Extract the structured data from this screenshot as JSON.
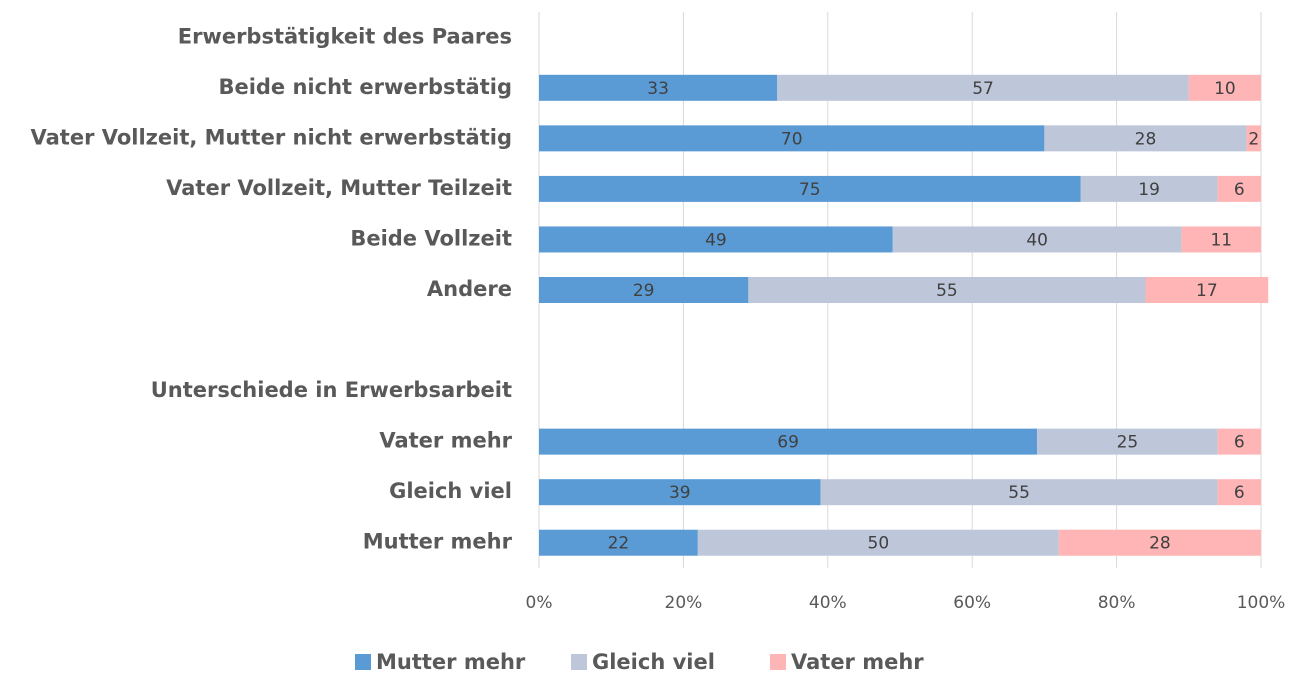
{
  "chart_data": {
    "type": "stacked_barh",
    "categories": [
      "Erwerbstätigkeit des Paares",
      "Beide nicht erwerbstätig",
      "Vater Vollzeit, Mutter nicht erwerbstätig",
      "Vater Vollzeit, Mutter Teilzeit",
      "Beide Vollzeit",
      "Andere",
      null,
      "Unterschiede in Erwerbsarbeit",
      "Vater mehr",
      "Gleich viel",
      "Mutter mehr"
    ],
    "series": [
      {
        "name": "Mutter mehr",
        "color": "#5b9bd5",
        "values": [
          null,
          33,
          70,
          75,
          49,
          29,
          null,
          null,
          69,
          39,
          22
        ]
      },
      {
        "name": "Gleich viel",
        "color": "#bec6da",
        "values": [
          null,
          57,
          28,
          19,
          40,
          55,
          null,
          null,
          25,
          55,
          50
        ]
      },
      {
        "name": "Vater mehr",
        "color": "#ffb5b5",
        "values": [
          null,
          10,
          2,
          6,
          11,
          17,
          null,
          null,
          6,
          6,
          28
        ]
      }
    ],
    "xlim": [
      0,
      100
    ],
    "xticks": [
      {
        "value": 0,
        "label": "0%"
      },
      {
        "value": 20,
        "label": "20%"
      },
      {
        "value": 40,
        "label": "40%"
      },
      {
        "value": 60,
        "label": "60%"
      },
      {
        "value": 80,
        "label": "80%"
      },
      {
        "value": 100,
        "label": "100%"
      }
    ],
    "grid": true,
    "legend": "bottom"
  }
}
